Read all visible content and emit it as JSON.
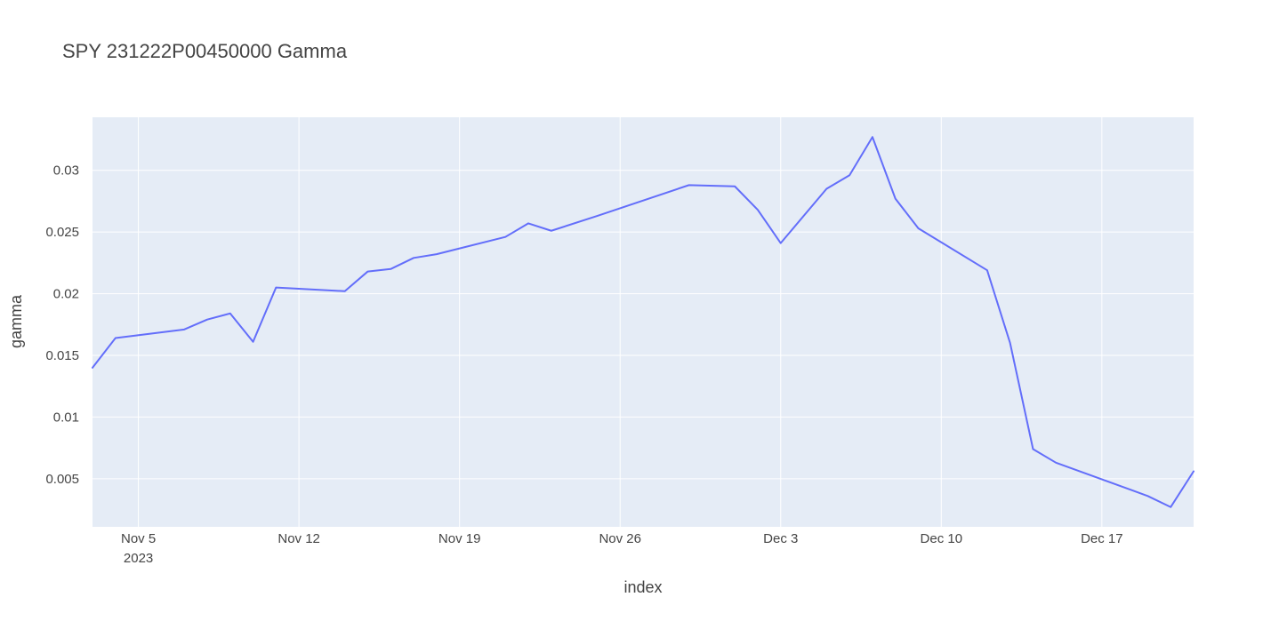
{
  "chart_data": {
    "type": "line",
    "title": "SPY   231222P00450000 Gamma",
    "xlabel": "index",
    "ylabel": "gamma",
    "x_axis_type": "date",
    "xlim": [
      "2023-11-03",
      "2023-12-21"
    ],
    "ylim": [
      0.0011,
      0.0343
    ],
    "x_ticks": [
      {
        "date": "2023-11-05",
        "label": "Nov 5",
        "sublabel": "2023"
      },
      {
        "date": "2023-11-12",
        "label": "Nov 12"
      },
      {
        "date": "2023-11-19",
        "label": "Nov 19"
      },
      {
        "date": "2023-11-26",
        "label": "Nov 26"
      },
      {
        "date": "2023-12-03",
        "label": "Dec 3"
      },
      {
        "date": "2023-12-10",
        "label": "Dec 10"
      },
      {
        "date": "2023-12-17",
        "label": "Dec 17"
      }
    ],
    "y_ticks": [
      {
        "value": 0.005,
        "label": "0.005"
      },
      {
        "value": 0.01,
        "label": "0.01"
      },
      {
        "value": 0.015,
        "label": "0.015"
      },
      {
        "value": 0.02,
        "label": "0.02"
      },
      {
        "value": 0.025,
        "label": "0.025"
      },
      {
        "value": 0.03,
        "label": "0.03"
      }
    ],
    "grid": true,
    "colors": {
      "plot_bg": "#E5ECF6",
      "grid": "#ffffff",
      "line": "#636EFA"
    },
    "series": [
      {
        "x": [
          "2023-11-03",
          "2023-11-04",
          "2023-11-07",
          "2023-11-08",
          "2023-11-09",
          "2023-11-10",
          "2023-11-11",
          "2023-11-14",
          "2023-11-15",
          "2023-11-16",
          "2023-11-17",
          "2023-11-18",
          "2023-11-21",
          "2023-11-22",
          "2023-11-23",
          "2023-11-25",
          "2023-11-29",
          "2023-12-01",
          "2023-12-02",
          "2023-12-03",
          "2023-12-05",
          "2023-12-06",
          "2023-12-07",
          "2023-12-08",
          "2023-12-09",
          "2023-12-12",
          "2023-12-13",
          "2023-12-14",
          "2023-12-15",
          "2023-12-19",
          "2023-12-20",
          "2023-12-21"
        ],
        "values": [
          0.014,
          0.0164,
          0.0171,
          0.0179,
          0.0184,
          0.0161,
          0.0205,
          0.0202,
          0.0218,
          0.022,
          0.0229,
          0.0232,
          0.0246,
          0.0257,
          0.0251,
          0.0263,
          0.0288,
          0.0287,
          0.0268,
          0.0241,
          0.0285,
          0.0296,
          0.0327,
          0.0277,
          0.0253,
          0.0219,
          0.016,
          0.0074,
          0.0063,
          0.0036,
          0.0027,
          0.0056
        ]
      }
    ]
  }
}
